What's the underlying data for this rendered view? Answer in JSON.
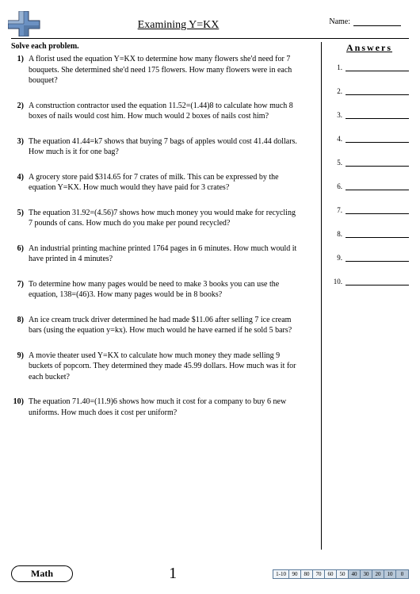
{
  "header": {
    "title": "Examining Y=KX",
    "name_label": "Name:"
  },
  "instruction": "Solve each problem.",
  "problems": [
    {
      "num": "1)",
      "text": "A florist used the equation Y=KX to determine how many flowers she'd need for 7 bouquets. She determined she'd need 175 flowers. How many flowers were in each bouquet?"
    },
    {
      "num": "2)",
      "text": "A construction contractor used the equation 11.52=(1.44)8 to calculate how much 8 boxes of nails would cost him. How much would 2 boxes of nails cost him?"
    },
    {
      "num": "3)",
      "text": "The equation 41.44=k7 shows that buying 7 bags of apples would cost 41.44 dollars. How much is it for one bag?"
    },
    {
      "num": "4)",
      "text": "A grocery store paid $314.65 for 7 crates of milk. This can be expressed by the equation Y=KX. How much would they have paid for 3 crates?"
    },
    {
      "num": "5)",
      "text": "The equation 31.92=(4.56)7 shows how much money you would make for recycling 7 pounds of cans. How much do you make per pound recycled?"
    },
    {
      "num": "6)",
      "text": "An industrial printing machine printed 1764 pages in 6 minutes. How much would it have printed in 4 minutes?"
    },
    {
      "num": "7)",
      "text": "To determine how many pages would be need to make 3 books you can use the equation, 138=(46)3. How many pages would be in 8 books?"
    },
    {
      "num": "8)",
      "text": "An ice cream truck driver determined he had made $11.06 after selling 7 ice cream bars (using the equation y=kx). How much would he have earned if he sold 5 bars?"
    },
    {
      "num": "9)",
      "text": "A movie theater used Y=KX to calculate how much money they made selling 9 buckets of popcorn. They determined they made 45.99 dollars. How much was it for each bucket?"
    },
    {
      "num": "10)",
      "text": "The equation 71.40=(11.9)6 shows how much it cost for a company to buy 6 new uniforms. How much does it cost per uniform?"
    }
  ],
  "answers": {
    "title": "Answers",
    "rows": [
      "1.",
      "2.",
      "3.",
      "4.",
      "5.",
      "6.",
      "7.",
      "8.",
      "9.",
      "10."
    ]
  },
  "footer": {
    "badge": "Math",
    "page": "1",
    "score_label": "1-10",
    "scores": [
      "90",
      "80",
      "70",
      "60",
      "50",
      "40",
      "30",
      "20",
      "10",
      "0"
    ],
    "shaded_from": 5,
    "shaded_color": "#b8c8d8",
    "normal_color": "#f0f4f8"
  },
  "cross": {
    "fill1": "#6b91c2",
    "fill2": "#4a70a0",
    "stroke": "#2a3a5a"
  }
}
